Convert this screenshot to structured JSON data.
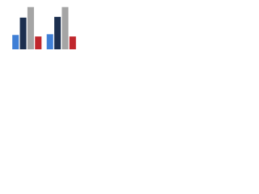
{
  "chart_data": {
    "type": "bar",
    "categories": [
      null,
      null
    ],
    "series": [
      {
        "color": "#3f7fd6",
        "values": [
          19,
          20
        ]
      },
      {
        "color": "#1c2f4f",
        "values": [
          42,
          43
        ]
      },
      {
        "color": "#a5a5a5",
        "values": [
          56,
          56
        ]
      },
      {
        "color": "#c0272d",
        "values": [
          17,
          17
        ]
      }
    ],
    "ylim": [
      0,
      60
    ]
  }
}
